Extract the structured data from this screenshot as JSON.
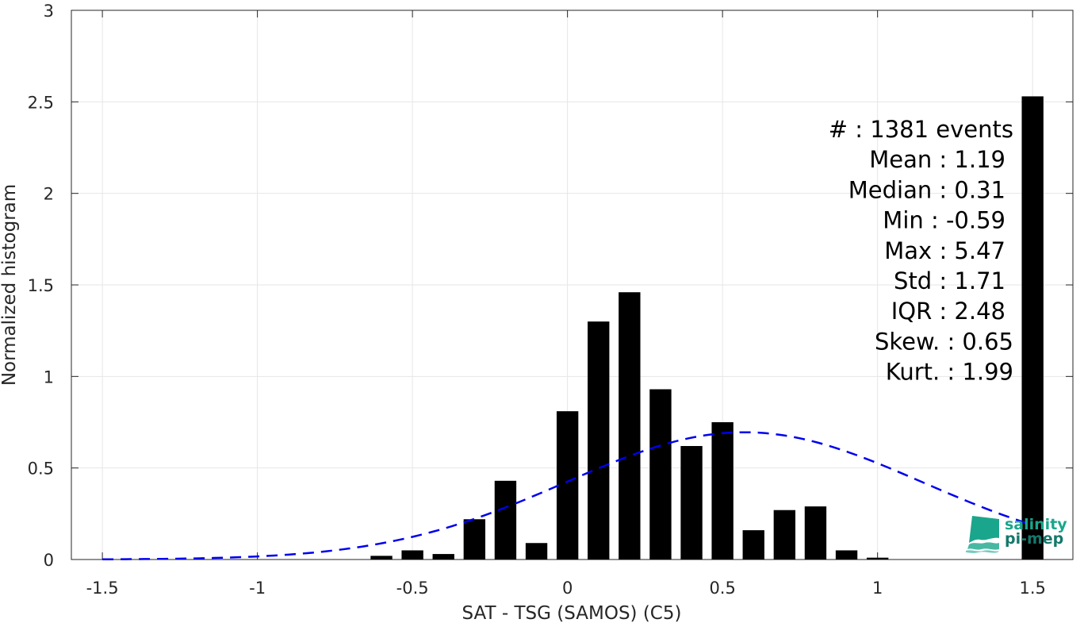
{
  "chart_data": {
    "type": "bar",
    "xlabel": "SAT - TSG (SAMOS) (C5)",
    "ylabel": "Normalized histogram",
    "xlim": [
      -1.6,
      1.63
    ],
    "ylim": [
      0,
      3
    ],
    "xticks": [
      -1.5,
      -1,
      -0.5,
      0,
      0.5,
      1,
      1.5
    ],
    "xtick_labels": [
      "-1.5",
      "-1",
      "-0.5",
      "0",
      "0.5",
      "1",
      "1.5"
    ],
    "yticks": [
      0,
      0.5,
      1,
      1.5,
      2,
      2.5,
      3
    ],
    "ytick_labels": [
      "0",
      "0.5",
      "1",
      "1.5",
      "2",
      "2.5",
      "3"
    ],
    "grid": true,
    "bar_width": 0.07,
    "bars": [
      {
        "x": -0.6,
        "y": 0.02
      },
      {
        "x": -0.5,
        "y": 0.05
      },
      {
        "x": -0.4,
        "y": 0.03
      },
      {
        "x": -0.3,
        "y": 0.22
      },
      {
        "x": -0.2,
        "y": 0.43
      },
      {
        "x": -0.1,
        "y": 0.09
      },
      {
        "x": 0.0,
        "y": 0.81
      },
      {
        "x": 0.1,
        "y": 1.3
      },
      {
        "x": 0.2,
        "y": 1.46
      },
      {
        "x": 0.3,
        "y": 0.93
      },
      {
        "x": 0.4,
        "y": 0.62
      },
      {
        "x": 0.5,
        "y": 0.75
      },
      {
        "x": 0.6,
        "y": 0.16
      },
      {
        "x": 0.7,
        "y": 0.27
      },
      {
        "x": 0.8,
        "y": 0.29
      },
      {
        "x": 0.9,
        "y": 0.05
      },
      {
        "x": 1.0,
        "y": 0.01
      },
      {
        "x": 1.5,
        "y": 2.53
      }
    ],
    "fit_curve": {
      "style": "dashed",
      "color": "#0000ee",
      "type": "gaussian",
      "mean": 0.57,
      "std": 0.576,
      "peak": 0.695,
      "x_range": [
        -1.5,
        1.5
      ]
    },
    "bar_color": "#000000"
  },
  "stats": [
    {
      "label": "#  : 1381 events"
    },
    {
      "label": "Mean : 1.19"
    },
    {
      "label": "Median : 0.31"
    },
    {
      "label": "Min : -0.59"
    },
    {
      "label": "Max : 5.47"
    },
    {
      "label": "Std : 1.71"
    },
    {
      "label": "IQR : 2.48"
    },
    {
      "label": "Skew. : 0.65"
    },
    {
      "label": "Kurt. : 1.99"
    }
  ],
  "logo": {
    "line1": "salinity",
    "line2": "pi-mep",
    "color_main": "#1aa68c",
    "color_dark": "#14786b"
  }
}
